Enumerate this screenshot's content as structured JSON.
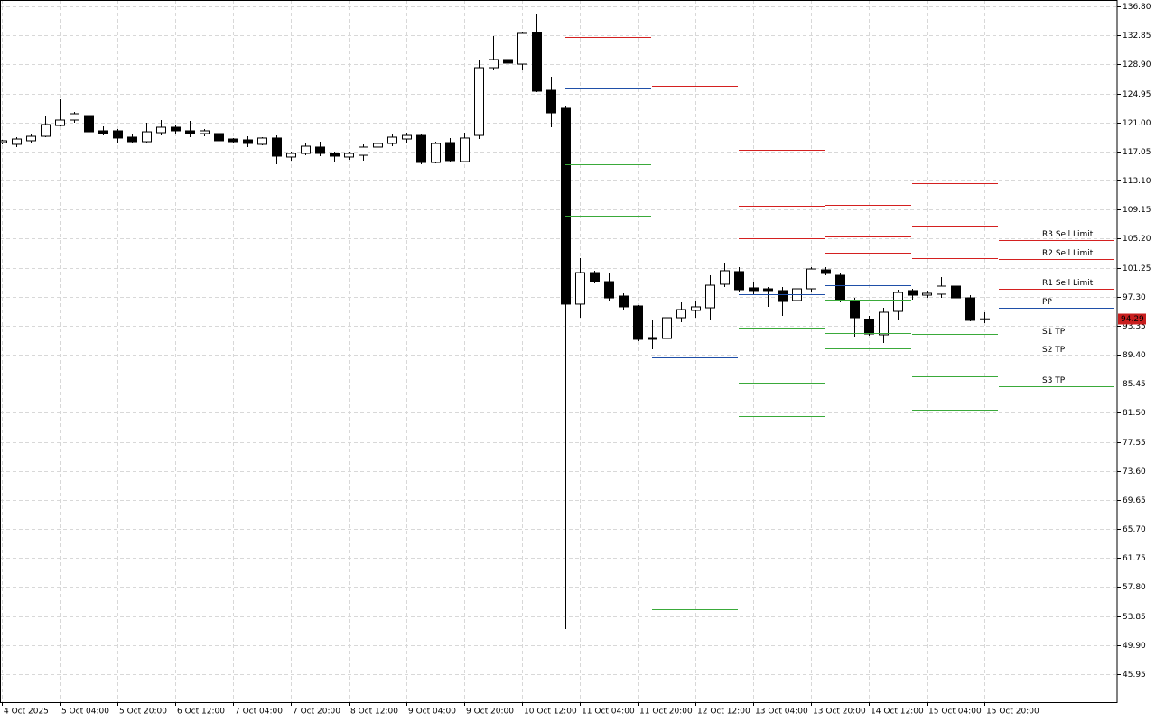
{
  "chart_data": {
    "type": "candlestick",
    "categories": [
      "4 Oct 2025",
      null,
      null,
      null,
      "5 Oct 04:00",
      null,
      null,
      null,
      "5 Oct 20:00",
      null,
      null,
      null,
      "6 Oct 12:00",
      null,
      null,
      null,
      "7 Oct 04:00",
      null,
      null,
      null,
      "7 Oct 20:00",
      null,
      null,
      null,
      "8 Oct 12:00",
      null,
      null,
      null,
      "9 Oct 04:00",
      null,
      null,
      null,
      "9 Oct 20:00",
      null,
      null,
      null,
      "10 Oct 12:00",
      null,
      null,
      null,
      "11 Oct 04:00",
      null,
      null,
      null,
      "11 Oct 20:00",
      null,
      null,
      null,
      "12 Oct 12:00",
      null,
      null,
      null,
      "13 Oct 04:00",
      null,
      null,
      null,
      "13 Oct 20:00",
      null,
      null,
      null,
      "14 Oct 12:00",
      null,
      null,
      null,
      "15 Oct 04:00",
      null,
      null,
      null,
      "15 Oct 20:00"
    ],
    "open": [
      118.26,
      118.02,
      118.51,
      119.12,
      120.59,
      121.33,
      121.94,
      119.86,
      119.86,
      119.0,
      118.38,
      119.61,
      120.35,
      119.86,
      119.49,
      119.49,
      118.75,
      118.63,
      118.02,
      118.88,
      116.3,
      116.79,
      117.65,
      116.79,
      116.3,
      116.54,
      117.65,
      118.14,
      118.75,
      119.24,
      115.56,
      118.26,
      115.68,
      119.24,
      128.45,
      129.56,
      128.94,
      133.24,
      125.38,
      122.93,
      96.29,
      100.58,
      99.35,
      97.39,
      96.04,
      91.74,
      91.62,
      94.44,
      95.43,
      95.79,
      98.99,
      100.71,
      98.5,
      98.37,
      98.13,
      96.78,
      98.37,
      100.95,
      100.21,
      96.78,
      94.2,
      92.11,
      95.3,
      98.13,
      97.51,
      97.64,
      98.74,
      97.14,
      94.2
    ],
    "high": [
      118.63,
      119.0,
      119.37,
      121.94,
      124.15,
      122.44,
      122.19,
      120.47,
      120.1,
      119.37,
      120.96,
      121.33,
      120.59,
      121.21,
      120.1,
      119.73,
      118.88,
      119.12,
      119.0,
      119.24,
      117.03,
      118.14,
      118.38,
      117.03,
      117.03,
      118.02,
      119.24,
      119.49,
      119.61,
      119.49,
      118.38,
      118.88,
      119.61,
      129.56,
      132.75,
      132.26,
      133.36,
      135.82,
      127.22,
      123.17,
      102.55,
      100.83,
      100.46,
      97.76,
      96.16,
      94.08,
      94.69,
      96.53,
      96.78,
      100.21,
      101.93,
      101.32,
      99.35,
      98.62,
      98.62,
      98.74,
      101.32,
      101.32,
      100.46,
      97.14,
      94.69,
      95.79,
      98.25,
      98.37,
      98.13,
      99.97,
      99.23,
      97.51,
      95.18
    ],
    "low": [
      118.02,
      117.65,
      118.26,
      119.0,
      120.47,
      120.96,
      119.61,
      119.24,
      118.26,
      118.14,
      118.14,
      119.24,
      119.49,
      119.0,
      119.12,
      117.77,
      118.14,
      117.65,
      117.89,
      115.32,
      115.81,
      116.54,
      116.42,
      115.56,
      115.93,
      115.81,
      117.28,
      117.77,
      118.26,
      115.32,
      115.44,
      115.56,
      115.56,
      118.75,
      128.08,
      126.0,
      128.08,
      125.14,
      120.35,
      52.09,
      94.44,
      99.11,
      96.78,
      95.55,
      91.25,
      90.15,
      91.5,
      93.83,
      94.44,
      94.08,
      98.62,
      97.88,
      97.51,
      95.92,
      94.69,
      96.16,
      98.0,
      100.21,
      96.53,
      91.87,
      91.99,
      91.0,
      94.08,
      96.9,
      97.14,
      97.14,
      96.78,
      93.95,
      93.71
    ],
    "close": [
      118.51,
      118.75,
      119.12,
      120.72,
      121.33,
      122.19,
      119.73,
      119.49,
      118.88,
      118.38,
      119.73,
      120.35,
      119.86,
      119.49,
      119.86,
      118.51,
      118.38,
      118.14,
      118.88,
      116.42,
      116.79,
      117.77,
      116.79,
      116.42,
      116.79,
      117.65,
      118.14,
      119.0,
      119.24,
      115.56,
      118.14,
      115.81,
      118.88,
      128.45,
      129.56,
      129.07,
      133.12,
      125.26,
      122.31,
      96.29,
      100.58,
      99.35,
      97.14,
      95.92,
      91.5,
      91.5,
      94.44,
      95.55,
      95.92,
      98.86,
      100.83,
      98.25,
      98.13,
      98.13,
      96.65,
      98.37,
      101.07,
      100.46,
      96.78,
      94.44,
      92.23,
      95.18,
      97.88,
      97.51,
      97.76,
      98.74,
      97.14,
      94.08,
      94.29
    ],
    "current_price": 94.29,
    "ylim": [
      42.14,
      137.66
    ],
    "yticks": [
      {
        "value": 136.8,
        "label": "136.80"
      },
      132.85,
      {
        "value": 128.9,
        "label": "128.90"
      },
      124.95,
      {
        "value": 121,
        "label": "121.00"
      },
      117.05,
      {
        "value": 113.1,
        "label": "113.10"
      },
      109.15,
      {
        "value": 105.2,
        "label": "105.20"
      },
      101.25,
      {
        "value": 97.3,
        "label": "97.30"
      },
      93.35,
      {
        "value": 89.4,
        "label": "89.40"
      },
      85.45,
      {
        "value": 81.5,
        "label": "81.50"
      },
      77.55,
      {
        "value": 73.6,
        "label": "73.60"
      },
      69.65,
      {
        "value": 65.7,
        "label": "65.70"
      },
      61.75,
      {
        "value": 57.8,
        "label": "57.80"
      },
      53.85,
      {
        "value": 49.9,
        "label": "49.90"
      },
      45.95
    ],
    "grid": true,
    "up_color": "#ffffff",
    "down_color": "#000000",
    "current_color": "#c81e1e",
    "pivots": {
      "x": [
        39,
        45,
        51,
        57,
        63,
        69
      ],
      "series": [
        {
          "name": "R3 Sell Limit",
          "color": "#d42020",
          "values": [
            null,
            null,
            117.28,
            109.79,
            112.74,
            104.99
          ]
        },
        {
          "name": "R2 Sell Limit",
          "color": "#d42020",
          "values": [
            null,
            null,
            109.67,
            105.49,
            106.97,
            102.42
          ]
        },
        {
          "name": "R1 Sell Limit",
          "color": "#d42020",
          "values": [
            132.63,
            126.0,
            105.25,
            103.28,
            102.55,
            98.37
          ]
        },
        {
          "name": "PP",
          "color": "#1f4fa8",
          "values": [
            125.63,
            89.04,
            97.63,
            98.86,
            96.78,
            95.79
          ]
        },
        {
          "name": "S1 TP",
          "color": "#3aaa3a",
          "values": [
            115.31,
            54.79,
            93.09,
            96.9,
            92.23,
            91.74
          ]
        },
        {
          "name": "S2 TP",
          "color": "#3aaa3a",
          "values": [
            108.32,
            null,
            85.6,
            92.35,
            86.46,
            89.29
          ]
        },
        {
          "name": "S3 TP",
          "color": "#3aaa3a",
          "values": [
            98.0,
            null,
            81.06,
            90.27,
            81.92,
            85.11
          ]
        }
      ]
    }
  }
}
